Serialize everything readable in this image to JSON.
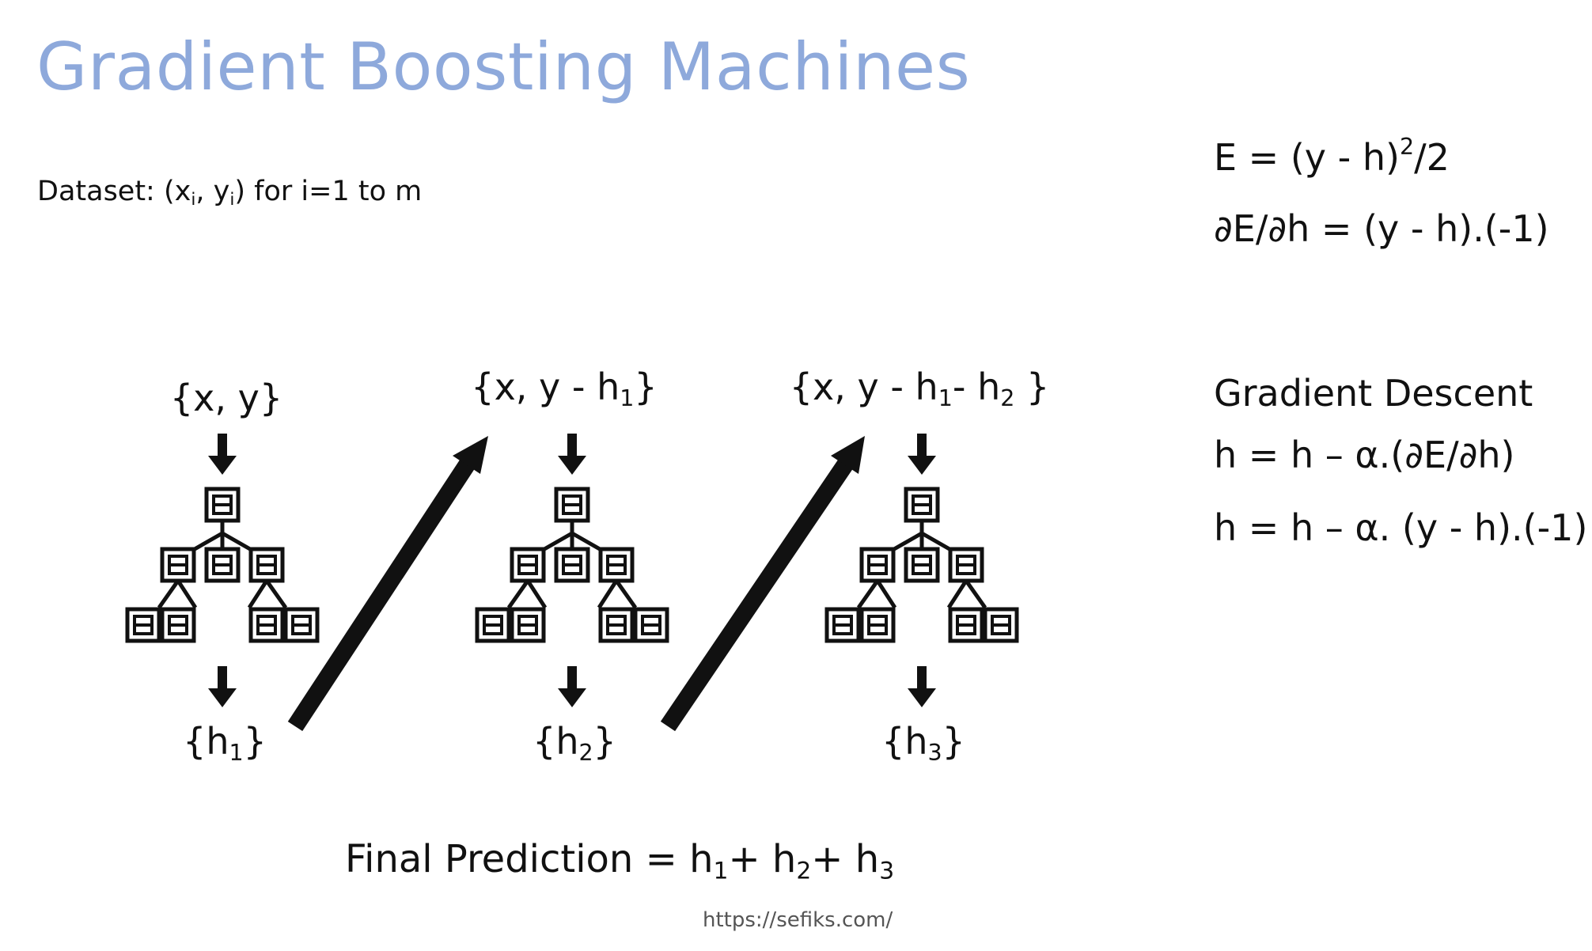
{
  "title": "Gradient Boosting Machines",
  "dataset": {
    "prefix": "Dataset: (x",
    "sub1": "i",
    "mid": ", y",
    "sub2": "i",
    "suffix": ") for i=1 to m"
  },
  "error": {
    "line1_prefix": "E = (y - h)",
    "line1_sup": "2",
    "line1_suffix": "/2",
    "line2": "∂E/∂h = (y - h).(-1)"
  },
  "gradient_descent": {
    "heading": "Gradient Descent",
    "line1": "h = h – α.(∂E/∂h)",
    "line2": "h = h – α. (y - h).(-1)"
  },
  "stages": [
    {
      "input": [
        {
          "t": "{x, y}"
        }
      ],
      "output": [
        {
          "t": "{h"
        },
        {
          "s": "1"
        },
        {
          "t": "}"
        }
      ]
    },
    {
      "input": [
        {
          "t": "{x, y - h"
        },
        {
          "s": "1"
        },
        {
          "t": "}"
        }
      ],
      "output": [
        {
          "t": "{h"
        },
        {
          "s": "2"
        },
        {
          "t": "}"
        }
      ]
    },
    {
      "input": [
        {
          "t": "{x, y - h"
        },
        {
          "s": "1"
        },
        {
          "t": "- h"
        },
        {
          "s": "2"
        },
        {
          "t": " }"
        }
      ],
      "output": [
        {
          "t": "{h"
        },
        {
          "s": "3"
        },
        {
          "t": "}"
        }
      ]
    }
  ],
  "final_prediction": {
    "prefix": "Final Prediction = h",
    "s1": "1",
    "p2": "+ h",
    "s2": "2",
    "p3": "+ h",
    "s3": "3"
  },
  "url": "https://sefiks.com/",
  "colors": {
    "title": "#8ea9db",
    "ink": "#111111"
  }
}
